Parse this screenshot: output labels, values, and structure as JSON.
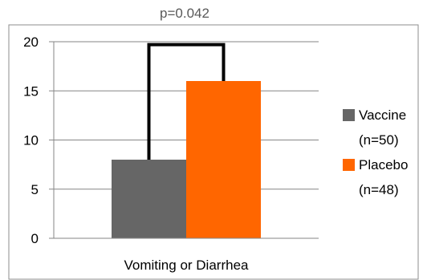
{
  "chart_data": {
    "type": "bar",
    "categories": [
      "Vomiting or Diarrhea"
    ],
    "series": [
      {
        "name": "Vaccine (n=50)",
        "name_lines": [
          "Vaccine",
          "(n=50)"
        ],
        "values": [
          8
        ],
        "color": "#666666"
      },
      {
        "name": "Placebo (n=48)",
        "name_lines": [
          "Placebo",
          "(n=48)"
        ],
        "values": [
          16
        ],
        "color": "#ff6600"
      }
    ],
    "ylim": [
      0,
      20
    ],
    "yticks": [
      "0",
      "5",
      "10",
      "15",
      "20"
    ],
    "grid": true,
    "legend": "right",
    "annotation": "p=0.042",
    "significance_bracket": true
  }
}
